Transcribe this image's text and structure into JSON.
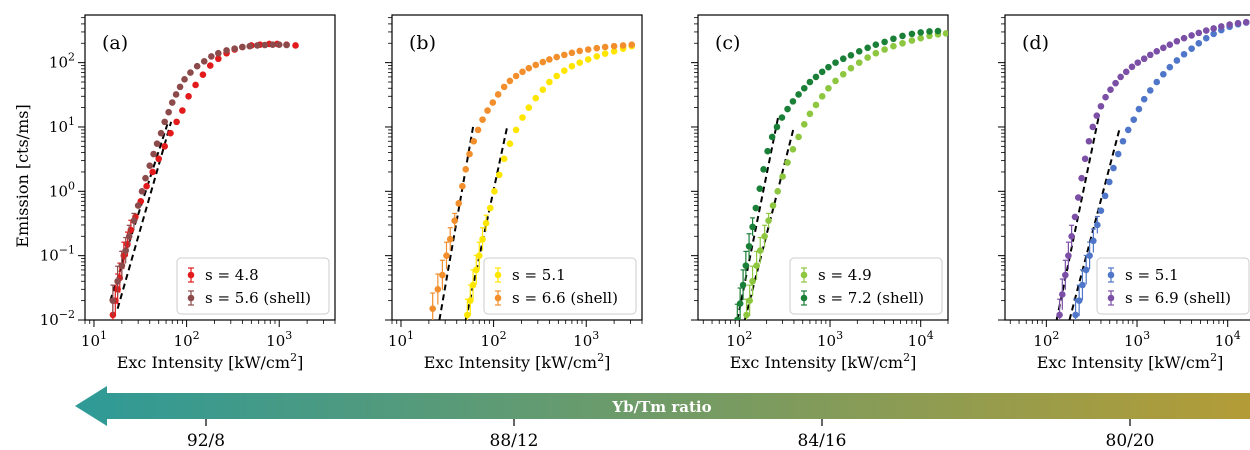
{
  "figure": {
    "ylabel": "Emission [cts/ms]",
    "xlabel": "Exc Intensity [kW/cm",
    "xlabel_sup": "2",
    "xlabel_end": "]",
    "y_ticks": [
      {
        "value": 0.01,
        "base": "10",
        "exp": "−2"
      },
      {
        "value": 0.1,
        "base": "10",
        "exp": "−1"
      },
      {
        "value": 1,
        "base": "10",
        "exp": "0"
      },
      {
        "value": 10,
        "base": "10",
        "exp": "1"
      },
      {
        "value": 100,
        "base": "10",
        "exp": "2"
      }
    ]
  },
  "chart_data": [
    {
      "type": "scatter",
      "panel_label": "(a)",
      "x_scale": "log",
      "y_scale": "log",
      "xlim": [
        8,
        4000
      ],
      "ylim": [
        0.01,
        550
      ],
      "x_ticks": [
        {
          "value": 10,
          "base": "10",
          "exp": "1"
        },
        {
          "value": 100,
          "base": "10",
          "exp": "2"
        },
        {
          "value": 1000,
          "base": "10",
          "exp": "3"
        }
      ],
      "legend_position": "lower-right",
      "series": [
        {
          "name": "s = 4.8",
          "color": "#e31a1c",
          "x": [
            16,
            17,
            18,
            19,
            20,
            21,
            23,
            25,
            28,
            32,
            37,
            43,
            50,
            58,
            67,
            78,
            90,
            105,
            125,
            150,
            180,
            220,
            270,
            330,
            400,
            500,
            620,
            780,
            950,
            1200,
            1500
          ],
          "y": [
            0.012,
            0.02,
            0.03,
            0.045,
            0.07,
            0.1,
            0.15,
            0.25,
            0.4,
            0.7,
            1.2,
            2.0,
            3.2,
            5.0,
            8.0,
            12,
            18,
            30,
            45,
            65,
            90,
            115,
            140,
            160,
            175,
            185,
            190,
            195,
            195,
            190,
            185
          ]
        },
        {
          "name": "s = 5.6 (shell)",
          "color": "#8c4a4a",
          "x": [
            16,
            18,
            20,
            22,
            24,
            27,
            30,
            33,
            36,
            40,
            44,
            48,
            53,
            58,
            64,
            70,
            77,
            85,
            95,
            110,
            130,
            155,
            185,
            220,
            270,
            330,
            400,
            480,
            580,
            700,
            850,
            1000,
            1200
          ],
          "y": [
            0.02,
            0.04,
            0.07,
            0.12,
            0.2,
            0.35,
            0.6,
            1.0,
            1.6,
            2.5,
            3.8,
            5.5,
            8,
            12,
            17,
            24,
            32,
            42,
            55,
            70,
            88,
            105,
            125,
            140,
            155,
            165,
            175,
            180,
            185,
            188,
            190,
            190,
            188
          ]
        }
      ],
      "fits": [
        {
          "x": [
            15,
            62
          ],
          "y": [
            0.02,
            11
          ]
        },
        {
          "x": [
            18,
            68
          ],
          "y": [
            0.015,
            12
          ]
        }
      ]
    },
    {
      "type": "scatter",
      "panel_label": "(b)",
      "x_scale": "log",
      "y_scale": "log",
      "xlim": [
        8,
        4000
      ],
      "ylim": [
        0.01,
        550
      ],
      "x_ticks": [
        {
          "value": 10,
          "base": "10",
          "exp": "1"
        },
        {
          "value": 100,
          "base": "10",
          "exp": "2"
        },
        {
          "value": 1000,
          "base": "10",
          "exp": "3"
        }
      ],
      "legend_position": "lower-right",
      "series": [
        {
          "name": "s = 5.1",
          "color": "#ffe600",
          "x": [
            52,
            56,
            60,
            65,
            70,
            76,
            83,
            92,
            102,
            115,
            130,
            150,
            175,
            205,
            240,
            285,
            340,
            400,
            480,
            580,
            700,
            850,
            1050,
            1300,
            1600,
            2000,
            2500,
            3100
          ],
          "y": [
            0.012,
            0.02,
            0.035,
            0.06,
            0.1,
            0.18,
            0.32,
            0.55,
            1.0,
            1.8,
            3.2,
            5.5,
            9,
            14,
            20,
            28,
            38,
            50,
            62,
            75,
            88,
            100,
            112,
            125,
            138,
            150,
            165,
            180
          ]
        },
        {
          "name": "s = 6.6 (shell)",
          "color": "#f28e2b",
          "x": [
            22,
            25,
            28,
            31,
            34,
            38,
            42,
            46,
            50,
            55,
            61,
            68,
            76,
            86,
            98,
            112,
            130,
            150,
            175,
            205,
            240,
            285,
            340,
            400,
            480,
            580,
            700,
            850,
            1050,
            1300,
            1600,
            2000,
            2500,
            3100
          ],
          "y": [
            0.015,
            0.03,
            0.05,
            0.1,
            0.18,
            0.35,
            0.65,
            1.2,
            2.2,
            3.8,
            6,
            9,
            13,
            18,
            24,
            32,
            42,
            52,
            62,
            72,
            82,
            92,
            102,
            112,
            122,
            132,
            142,
            152,
            160,
            168,
            175,
            180,
            185,
            190
          ]
        }
      ],
      "fits": [
        {
          "x": [
            26,
            60
          ],
          "y": [
            0.01,
            10
          ]
        },
        {
          "x": [
            50,
            140
          ],
          "y": [
            0.01,
            10
          ]
        }
      ]
    },
    {
      "type": "scatter",
      "panel_label": "(c)",
      "x_scale": "log",
      "y_scale": "log",
      "xlim": [
        35,
        20000
      ],
      "ylim": [
        0.01,
        550
      ],
      "x_ticks": [
        {
          "value": 100,
          "base": "10",
          "exp": "2"
        },
        {
          "value": 1000,
          "base": "10",
          "exp": "3"
        },
        {
          "value": 10000,
          "base": "10",
          "exp": "4"
        }
      ],
      "legend_position": "lower-right",
      "series": [
        {
          "name": "s = 4.9",
          "color": "#8dc63f",
          "x": [
            120,
            130,
            140,
            155,
            170,
            190,
            210,
            235,
            265,
            300,
            340,
            390,
            450,
            520,
            600,
            700,
            820,
            960,
            1150,
            1400,
            1700,
            2100,
            2600,
            3200,
            4000,
            5000,
            6300,
            8000,
            10000,
            12500,
            15500,
            19000
          ],
          "y": [
            0.012,
            0.02,
            0.04,
            0.07,
            0.12,
            0.2,
            0.35,
            0.6,
            1.0,
            1.7,
            2.8,
            4.5,
            7,
            11,
            16,
            22,
            30,
            40,
            52,
            66,
            82,
            100,
            120,
            140,
            160,
            180,
            200,
            220,
            240,
            260,
            275,
            285
          ]
        },
        {
          "name": "s = 7.2 (shell)",
          "color": "#1a7f37",
          "x": [
            95,
            102,
            110,
            118,
            128,
            140,
            152,
            168,
            185,
            205,
            230,
            260,
            295,
            340,
            390,
            450,
            520,
            600,
            700,
            820,
            960,
            1150,
            1400,
            1700,
            2100,
            2600,
            3200,
            4000,
            5000,
            6300,
            8000,
            10000,
            12500,
            15500
          ],
          "y": [
            0.01,
            0.018,
            0.035,
            0.07,
            0.14,
            0.28,
            0.55,
            1.1,
            2.2,
            4.2,
            7,
            10,
            14,
            19,
            25,
            32,
            40,
            50,
            60,
            72,
            85,
            100,
            115,
            130,
            150,
            170,
            190,
            210,
            235,
            260,
            280,
            295,
            305,
            310
          ]
        }
      ],
      "fits": [
        {
          "x": [
            95,
            270
          ],
          "y": [
            0.01,
            15
          ]
        },
        {
          "x": [
            115,
            400
          ],
          "y": [
            0.01,
            10
          ]
        }
      ]
    },
    {
      "type": "scatter",
      "panel_label": "(d)",
      "x_scale": "log",
      "y_scale": "log",
      "xlim": [
        35,
        20000
      ],
      "ylim": [
        0.01,
        550
      ],
      "x_ticks": [
        {
          "value": 100,
          "base": "10",
          "exp": "2"
        },
        {
          "value": 1000,
          "base": "10",
          "exp": "3"
        },
        {
          "value": 10000,
          "base": "10",
          "exp": "4"
        }
      ],
      "legend_position": "lower-right",
      "series": [
        {
          "name": "s = 5.1",
          "color": "#4f76c8",
          "x": [
            210,
            230,
            250,
            275,
            300,
            330,
            365,
            400,
            445,
            495,
            550,
            620,
            700,
            800,
            920,
            1050,
            1200,
            1400,
            1650,
            1950,
            2300,
            2750,
            3300,
            4000,
            4800,
            5800,
            7000,
            8500,
            10500,
            13000,
            16000,
            19500
          ],
          "y": [
            0.012,
            0.02,
            0.035,
            0.06,
            0.1,
            0.17,
            0.3,
            0.5,
            0.85,
            1.4,
            2.3,
            3.8,
            6,
            9,
            13,
            19,
            27,
            37,
            50,
            66,
            85,
            108,
            135,
            165,
            200,
            240,
            280,
            320,
            360,
            395,
            420,
            440
          ]
        },
        {
          "name": "s = 6.9 (shell)",
          "color": "#7b4fa6",
          "x": [
            140,
            150,
            162,
            175,
            190,
            207,
            225,
            245,
            268,
            295,
            325,
            360,
            400,
            450,
            510,
            580,
            660,
            760,
            880,
            1020,
            1200,
            1400,
            1650,
            1950,
            2300,
            2750,
            3300,
            4000,
            4800,
            5800,
            7000,
            8500,
            10500,
            13000,
            16000,
            19500
          ],
          "y": [
            0.012,
            0.025,
            0.05,
            0.1,
            0.2,
            0.4,
            0.8,
            1.6,
            3.2,
            6,
            10,
            15,
            21,
            29,
            38,
            48,
            60,
            72,
            86,
            100,
            115,
            132,
            150,
            170,
            190,
            215,
            240,
            265,
            290,
            315,
            340,
            365,
            390,
            410,
            425,
            435
          ]
        }
      ],
      "fits": [
        {
          "x": [
            130,
            380
          ],
          "y": [
            0.01,
            15
          ]
        },
        {
          "x": [
            180,
            650
          ],
          "y": [
            0.01,
            10
          ]
        }
      ]
    }
  ],
  "ratio_axis": {
    "title": "Yb/Tm ratio",
    "color_left": "#2e9a97",
    "color_right": "#b39c37",
    "ticks": [
      "92/8",
      "88/12",
      "84/16",
      "80/20"
    ]
  }
}
